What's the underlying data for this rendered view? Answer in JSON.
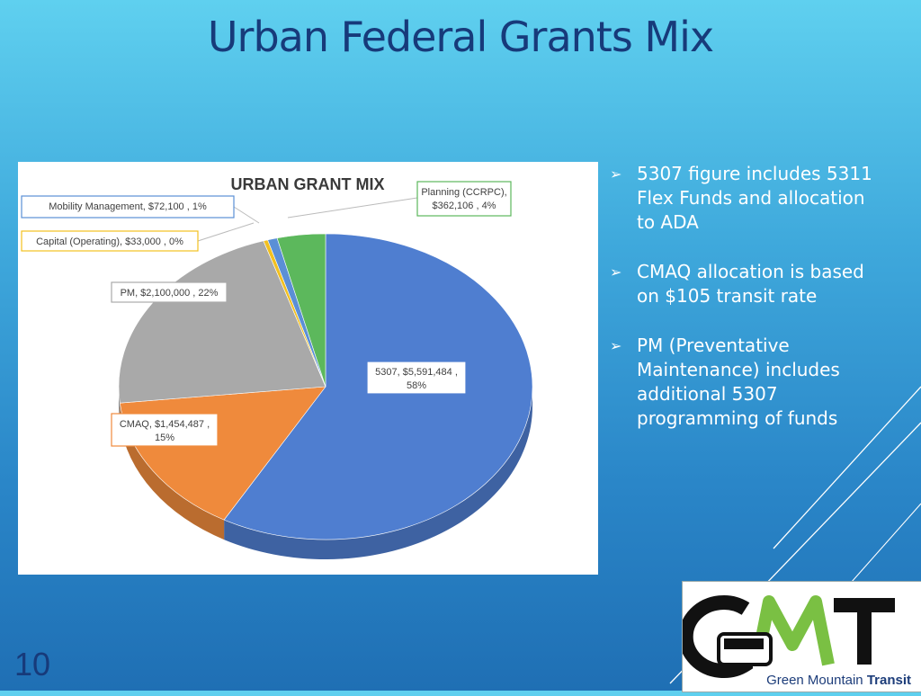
{
  "slide": {
    "title": "Urban Federal Grants Mix",
    "page_number": "10",
    "bullets": [
      "5307 figure includes 5311 Flex Funds and allocation to ADA",
      "CMAQ allocation is based on $105 transit rate",
      "PM (Preventative Maintenance) includes additional 5307 programming of funds"
    ],
    "bullet_glyph": "➢"
  },
  "logo": {
    "letters": "GMT",
    "subtitle_plain": "Green Mountain ",
    "subtitle_bold": "Transit"
  },
  "chart_data": {
    "type": "pie",
    "title": "URBAN GRANT MIX",
    "slices": [
      {
        "name": "5307",
        "value": 5591484,
        "value_label": "$5,591,484",
        "percent_label": "58%",
        "color": "#4f7ed0"
      },
      {
        "name": "CMAQ",
        "value": 1454487,
        "value_label": "$1,454,487",
        "percent_label": "15%",
        "color": "#ef8a3c"
      },
      {
        "name": "PM",
        "value": 2100000,
        "value_label": "$2,100,000",
        "percent_label": "22%",
        "color": "#a9a9a9"
      },
      {
        "name": "Capital (Operating)",
        "value": 33000,
        "value_label": "$33,000",
        "percent_label": "0%",
        "color": "#f2c020"
      },
      {
        "name": "Mobility Management",
        "value": 72100,
        "value_label": "$72,100",
        "percent_label": "1%",
        "color": "#5b8fd6"
      },
      {
        "name": "Planning (CCRPC)",
        "value": 362106,
        "value_label": "$362,106",
        "percent_label": "4%",
        "color": "#5cb85c"
      }
    ]
  }
}
